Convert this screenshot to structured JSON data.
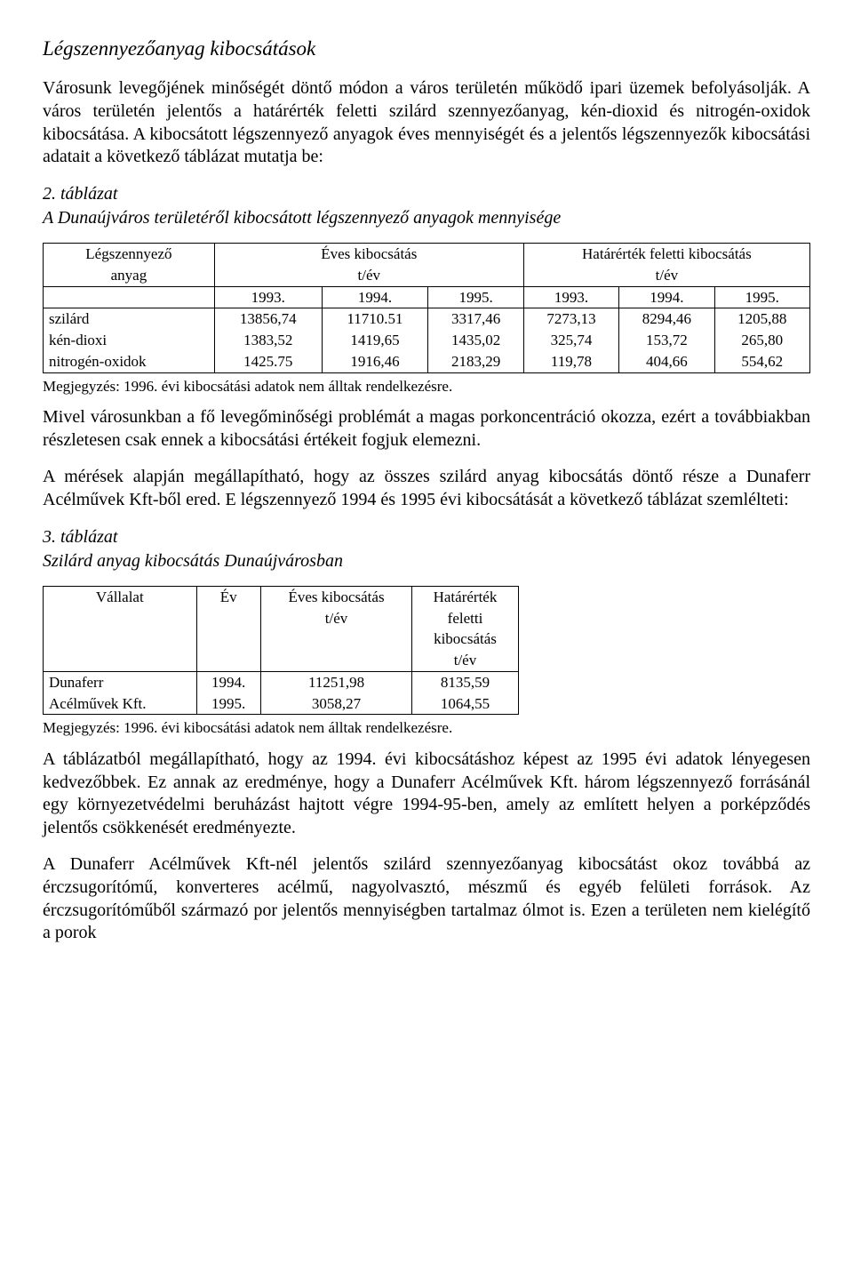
{
  "heading": "Légszennyezőanyag kibocsátások",
  "para1": "Városunk levegőjének minőségét döntő módon a város területén működő ipari üzemek befolyásolják. A város területén jelentős a határérték feletti szilárd szennyezőanyag, kén-dioxid és nitrogén-oxidok kibocsátása. A kibocsátott légszennyező anyagok éves mennyiségét és a jelentős légszennyezők kibocsátási adatait a következő táblázat mutatja be:",
  "t1": {
    "label": "2. táblázat",
    "caption": "A Dunaújváros területéről kibocsátott légszennyező anyagok mennyisége",
    "hdr": {
      "c1a": "Légszennyező",
      "c1b": "anyag",
      "c2a": "Éves kibocsátás",
      "c2b": "t/év",
      "c3a": "Határérték feletti kibocsátás",
      "c3b": "t/év"
    },
    "years": [
      "1993.",
      "1994.",
      "1995.",
      "1993.",
      "1994.",
      "1995."
    ],
    "rows": [
      {
        "n": "szilárd",
        "v": [
          "13856,74",
          "11710.51",
          "3317,46",
          "7273,13",
          "8294,46",
          "1205,88"
        ]
      },
      {
        "n": "kén-dioxi",
        "v": [
          "1383,52",
          "1419,65",
          "1435,02",
          "325,74",
          "153,72",
          "265,80"
        ]
      },
      {
        "n": "nitrogén-oxidok",
        "v": [
          "1425.75",
          "1916,46",
          "2183,29",
          "119,78",
          "404,66",
          "554,62"
        ]
      }
    ],
    "note": "Megjegyzés: 1996. évi kibocsátási adatok nem álltak rendelkezésre."
  },
  "para2": "Mivel városunkban a fő levegőminőségi problémát a magas porkoncentráció okozza, ezért a továbbiakban részletesen csak ennek a kibocsátási értékeit fogjuk elemezni.",
  "para3": "A mérések alapján megállapítható, hogy az összes szilárd anyag kibocsátás döntő része a Dunaferr Acélművek Kft-ből ered. E légszennyező 1994 és 1995 évi kibocsátását a következő táblázat szemlélteti:",
  "t2": {
    "label": "3. táblázat",
    "caption": "Szilárd anyag kibocsátás Dunaújvárosban",
    "hdr": {
      "c1": "Vállalat",
      "c2": "Év",
      "c3a": "Éves kibocsátás",
      "c3b": "t/év",
      "c4a": "Határérték",
      "c4b": "feletti",
      "c4c": "kibocsátás",
      "c4d": "t/év"
    },
    "r1": {
      "n1": "Dunaferr",
      "y": "1994.",
      "ev": "11251,98",
      "hv": "8135,59"
    },
    "r2": {
      "n1": "Acélművek Kft.",
      "y": "1995.",
      "ev": "3058,27",
      "hv": "1064,55"
    },
    "note": "Megjegyzés: 1996. évi kibocsátási adatok nem álltak rendelkezésre."
  },
  "para4": "A táblázatból megállapítható, hogy az 1994. évi kibocsátáshoz képest az 1995 évi adatok lényegesen kedvezőbbek. Ez annak az eredménye, hogy a Dunaferr Acélművek Kft. három légszennyező forrásánál egy környezetvédelmi beruházást hajtott végre 1994-95-ben, amely az említett helyen a porképződés jelentős csökkenését eredményezte.",
  "para5": "A Dunaferr Acélművek Kft-nél jelentős szilárd szennyezőanyag kibocsátást okoz továbbá az érczsugorítómű, konverteres acélmű, nagyolvasztó, mészmű és egyéb felületi források. Az érczsugorítóműből származó por jelentős mennyiségben tartalmaz ólmot is. Ezen a területen nem kielégítő a porok"
}
